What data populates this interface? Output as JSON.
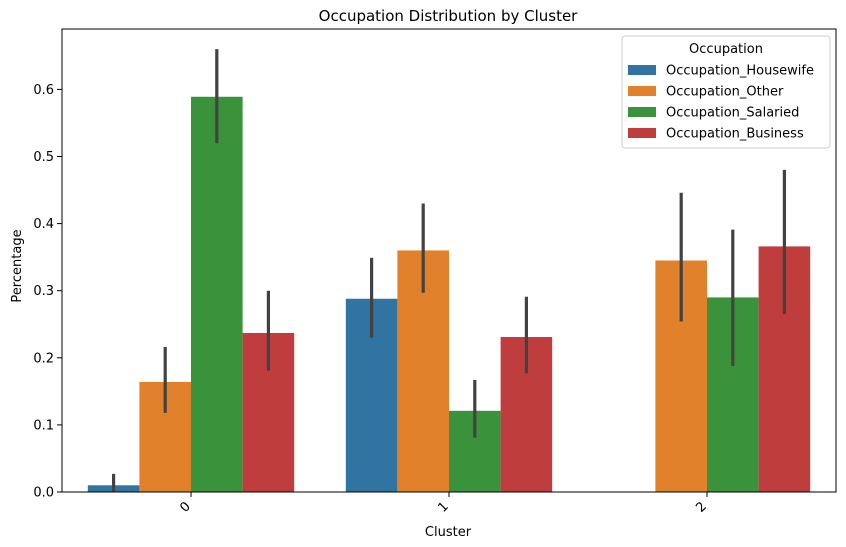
{
  "chart_data": {
    "type": "bar",
    "title": "Occupation Distribution by Cluster",
    "xlabel": "Cluster",
    "ylabel": "Percentage",
    "categories": [
      "0",
      "1",
      "2"
    ],
    "ylim": [
      0,
      0.69
    ],
    "yticks": [
      0.0,
      0.1,
      0.2,
      0.3,
      0.4,
      0.5,
      0.6
    ],
    "ytick_labels": [
      "0.0",
      "0.1",
      "0.2",
      "0.3",
      "0.4",
      "0.5",
      "0.6"
    ],
    "legend": {
      "title": "Occupation",
      "position": "top-right"
    },
    "grid": false,
    "series": [
      {
        "name": "Occupation_Housewife",
        "color": "#3274a1",
        "values": [
          0.01,
          0.288,
          0.0
        ],
        "err_low": [
          0.0,
          0.23,
          0.0
        ],
        "err_high": [
          0.027,
          0.349,
          0.0
        ]
      },
      {
        "name": "Occupation_Other",
        "color": "#e1812c",
        "values": [
          0.164,
          0.36,
          0.345
        ],
        "err_low": [
          0.118,
          0.297,
          0.254
        ],
        "err_high": [
          0.216,
          0.43,
          0.446
        ]
      },
      {
        "name": "Occupation_Salaried",
        "color": "#3a923a",
        "values": [
          0.589,
          0.121,
          0.29
        ],
        "err_low": [
          0.52,
          0.081,
          0.188
        ],
        "err_high": [
          0.66,
          0.167,
          0.391
        ]
      },
      {
        "name": "Occupation_Business",
        "color": "#c03d3e",
        "values": [
          0.237,
          0.231,
          0.366
        ],
        "err_low": [
          0.181,
          0.177,
          0.265
        ],
        "err_high": [
          0.3,
          0.291,
          0.48
        ]
      }
    ]
  }
}
